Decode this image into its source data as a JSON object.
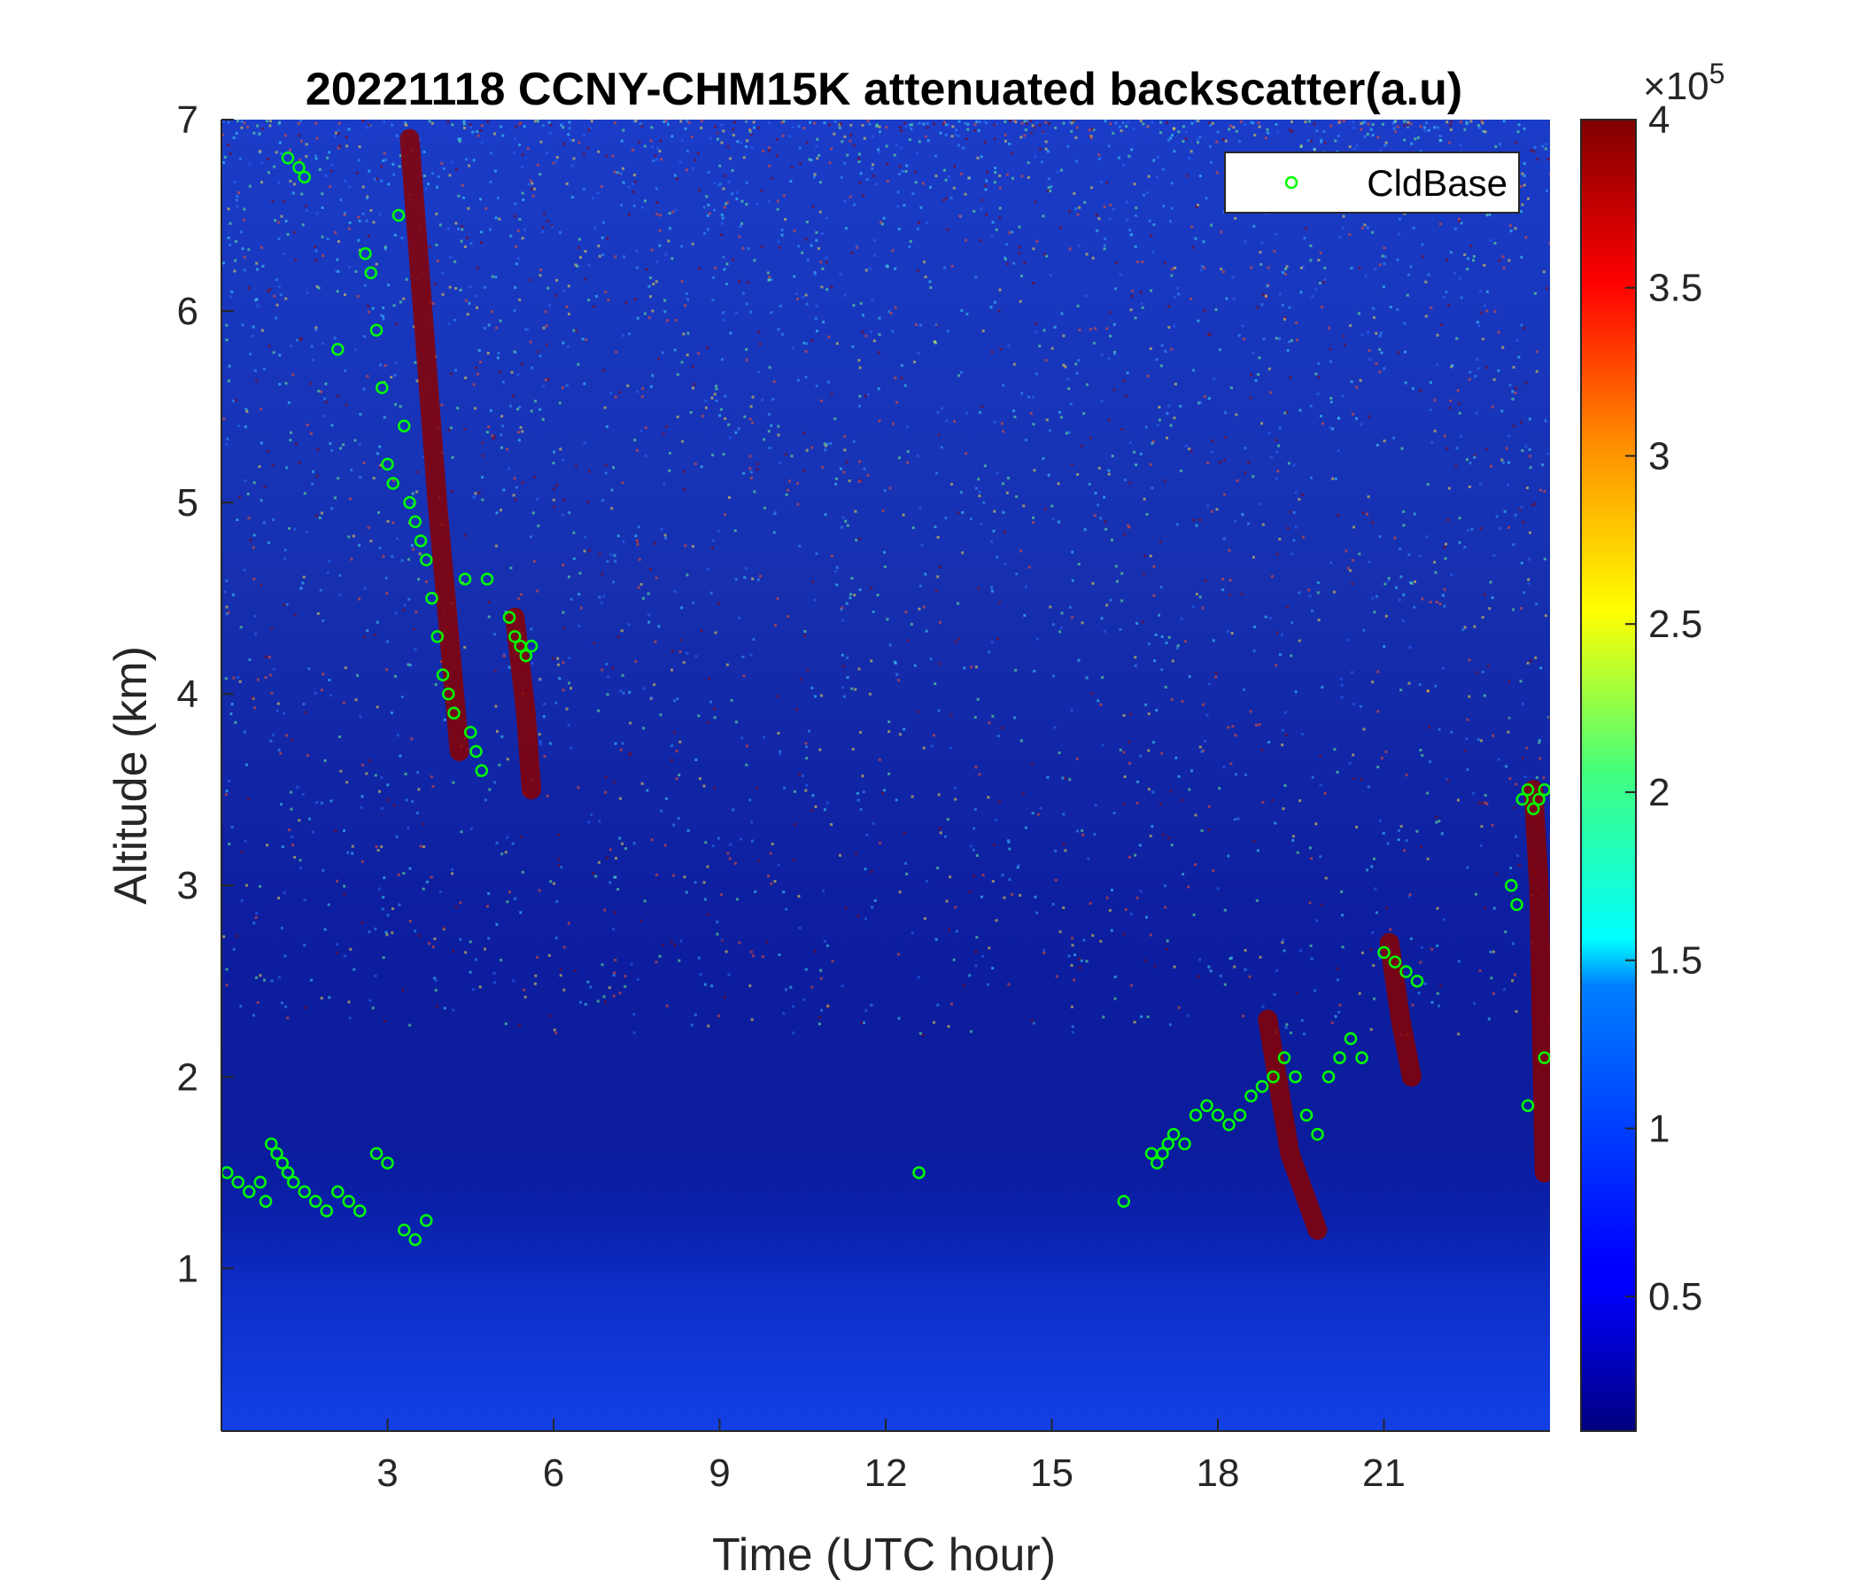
{
  "chart_data": {
    "type": "heatmap",
    "title": "20221118 CCNY-CHM15K attenuated backscatter(a.u)",
    "xlabel": "Time (UTC hour)",
    "ylabel": "Altitude (km)",
    "xlim": [
      0,
      24
    ],
    "ylim": [
      0.15,
      7
    ],
    "xticks": [
      3,
      6,
      9,
      12,
      15,
      18,
      21
    ],
    "xtick_labels": [
      "3",
      "6",
      "9",
      "12",
      "15",
      "18",
      "21"
    ],
    "yticks": [
      1,
      2,
      3,
      4,
      5,
      6,
      7
    ],
    "ytick_labels": [
      "1",
      "2",
      "3",
      "4",
      "5",
      "6",
      "7"
    ],
    "colormap": "jet",
    "colorbar": {
      "range": [
        0.1,
        4
      ],
      "ticks": [
        0.5,
        1,
        1.5,
        2,
        2.5,
        3,
        3.5,
        4
      ],
      "tick_labels": [
        "0.5",
        "1",
        "1.5",
        "2",
        "2.5",
        "3",
        "3.5",
        "4"
      ],
      "exponent_label": "×10",
      "exponent_power": "5"
    },
    "legend": {
      "position": "top-right",
      "entries": [
        "CldBase"
      ]
    },
    "overlay_series": [
      {
        "name": "CldBase",
        "marker": "circle",
        "color": "#00ff00",
        "x": [
          0.1,
          0.3,
          0.5,
          0.7,
          0.8,
          0.9,
          1.0,
          1.1,
          1.2,
          1.3,
          1.5,
          1.7,
          1.9,
          2.1,
          2.3,
          2.5,
          2.8,
          3.0,
          3.3,
          3.5,
          3.7,
          1.2,
          1.4,
          1.5,
          2.1,
          2.6,
          2.7,
          2.8,
          2.9,
          3.0,
          3.1,
          3.2,
          3.3,
          3.4,
          3.5,
          3.6,
          3.7,
          3.8,
          3.9,
          4.0,
          4.1,
          4.2,
          4.4,
          4.5,
          4.6,
          4.7,
          4.8,
          5.2,
          5.3,
          5.4,
          5.5,
          5.6,
          12.6,
          16.3,
          16.8,
          16.9,
          17.0,
          17.1,
          17.2,
          17.4,
          17.6,
          17.8,
          18.0,
          18.2,
          18.4,
          18.6,
          18.8,
          19.0,
          19.2,
          19.4,
          19.6,
          19.8,
          20.0,
          20.2,
          20.4,
          20.6,
          21.0,
          21.2,
          21.4,
          21.6,
          23.3,
          23.4,
          23.5,
          23.6,
          23.7,
          23.8,
          23.9,
          23.6,
          23.9
        ],
        "y": [
          1.5,
          1.45,
          1.4,
          1.45,
          1.35,
          1.65,
          1.6,
          1.55,
          1.5,
          1.45,
          1.4,
          1.35,
          1.3,
          1.4,
          1.35,
          1.3,
          1.6,
          1.55,
          1.2,
          1.15,
          1.25,
          6.8,
          6.75,
          6.7,
          5.8,
          6.3,
          6.2,
          5.9,
          5.6,
          5.2,
          5.1,
          6.5,
          5.4,
          5.0,
          4.9,
          4.8,
          4.7,
          4.5,
          4.3,
          4.1,
          4.0,
          3.9,
          4.6,
          3.8,
          3.7,
          3.6,
          4.6,
          4.4,
          4.3,
          4.25,
          4.2,
          4.25,
          1.5,
          1.35,
          1.6,
          1.55,
          1.6,
          1.65,
          1.7,
          1.65,
          1.8,
          1.85,
          1.8,
          1.75,
          1.8,
          1.9,
          1.95,
          2.0,
          2.1,
          2.0,
          1.8,
          1.7,
          2.0,
          2.1,
          2.2,
          2.1,
          2.65,
          2.6,
          2.55,
          2.5,
          3.0,
          2.9,
          3.45,
          3.5,
          3.4,
          3.45,
          3.5,
          1.85,
          2.1
        ]
      }
    ]
  }
}
